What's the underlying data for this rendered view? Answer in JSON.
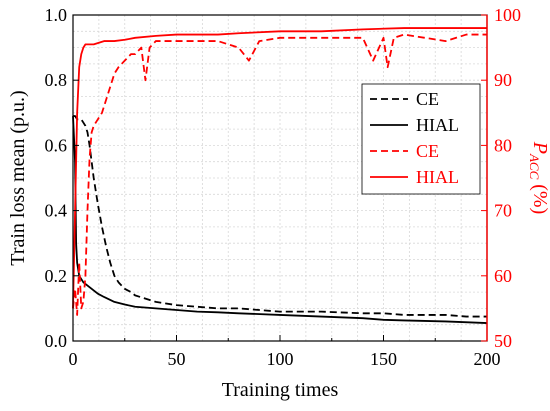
{
  "chart_data": {
    "type": "line",
    "xlabel": "Training times",
    "ylabel_left": "Train loss mean (p.u.)",
    "ylabel_right_main": "P",
    "ylabel_right_sub": "ACC",
    "ylabel_right_unit": "(%)",
    "xlim": [
      0,
      200
    ],
    "ylim_left": [
      0.0,
      1.0
    ],
    "ylim_right": [
      50,
      100
    ],
    "x_ticks": [
      "0",
      "50",
      "100",
      "150",
      "200"
    ],
    "y_left_ticks": [
      "0.0",
      "0.2",
      "0.4",
      "0.6",
      "0.8",
      "1.0"
    ],
    "y_right_ticks": [
      "50",
      "60",
      "70",
      "80",
      "90",
      "100"
    ],
    "grid": true,
    "legend_position": "right",
    "colors": {
      "black": "#000000",
      "red": "#ff0000"
    },
    "legend": [
      {
        "label": "CE",
        "color": "#000000",
        "dash": true
      },
      {
        "label": "HIAL",
        "color": "#000000",
        "dash": false
      },
      {
        "label": "CE",
        "color": "#ff0000",
        "dash": true
      },
      {
        "label": "HIAL",
        "color": "#ff0000",
        "dash": false
      }
    ],
    "series": [
      {
        "name": "CE",
        "axis": "left",
        "color": "#000000",
        "dash": true,
        "x": [
          0,
          1,
          2,
          3,
          4,
          5,
          6,
          7,
          8,
          9,
          10,
          12,
          14,
          16,
          18,
          20,
          22,
          25,
          28,
          30,
          35,
          40,
          50,
          60,
          70,
          80,
          90,
          100,
          120,
          140,
          150,
          160,
          180,
          190,
          200
        ],
        "y": [
          0.69,
          0.69,
          0.68,
          0.68,
          0.68,
          0.67,
          0.66,
          0.64,
          0.6,
          0.55,
          0.5,
          0.42,
          0.35,
          0.29,
          0.24,
          0.2,
          0.18,
          0.16,
          0.15,
          0.14,
          0.13,
          0.12,
          0.11,
          0.105,
          0.1,
          0.1,
          0.095,
          0.09,
          0.09,
          0.085,
          0.085,
          0.08,
          0.08,
          0.075,
          0.075
        ]
      },
      {
        "name": "HIAL",
        "axis": "left",
        "color": "#000000",
        "dash": false,
        "x": [
          0,
          1,
          1.5,
          2,
          3,
          4,
          5,
          6,
          7,
          8,
          10,
          12,
          15,
          20,
          25,
          30,
          40,
          50,
          60,
          70,
          80,
          100,
          120,
          140,
          150,
          160,
          180,
          200
        ],
        "y": [
          0.69,
          0.55,
          0.3,
          0.24,
          0.2,
          0.19,
          0.18,
          0.175,
          0.17,
          0.165,
          0.155,
          0.145,
          0.135,
          0.12,
          0.112,
          0.105,
          0.1,
          0.095,
          0.09,
          0.088,
          0.085,
          0.08,
          0.075,
          0.07,
          0.065,
          0.063,
          0.06,
          0.055
        ]
      },
      {
        "name": "CE",
        "axis": "right",
        "color": "#ff0000",
        "dash": true,
        "x": [
          0,
          1,
          2,
          3,
          4,
          5,
          6,
          7,
          8,
          9,
          10,
          12,
          14,
          16,
          18,
          20,
          22,
          25,
          28,
          30,
          33,
          35,
          37,
          40,
          45,
          50,
          60,
          70,
          80,
          85,
          90,
          100,
          120,
          140,
          145,
          150,
          152,
          155,
          160,
          180,
          190,
          200
        ],
        "y": [
          55,
          58,
          54,
          62,
          55,
          56,
          60,
          70,
          78,
          82,
          83,
          84,
          85,
          87,
          89,
          91,
          92,
          93,
          94,
          94,
          95,
          90,
          95,
          96,
          96,
          96,
          96,
          96,
          95,
          93,
          96,
          96.5,
          96.5,
          96.5,
          93,
          96.5,
          92,
          96.5,
          97,
          96,
          97,
          97
        ]
      },
      {
        "name": "HIAL",
        "axis": "right",
        "color": "#ff0000",
        "dash": false,
        "x": [
          0,
          1,
          2,
          3,
          4,
          5,
          6,
          8,
          10,
          15,
          20,
          25,
          30,
          40,
          50,
          60,
          70,
          80,
          100,
          120,
          140,
          160,
          180,
          200
        ],
        "y": [
          55,
          70,
          85,
          92,
          94,
          95,
          95.5,
          95.5,
          95.5,
          96,
          96,
          96.2,
          96.5,
          96.8,
          97,
          97,
          97,
          97.2,
          97.5,
          97.5,
          97.8,
          98,
          98,
          98
        ]
      }
    ]
  }
}
